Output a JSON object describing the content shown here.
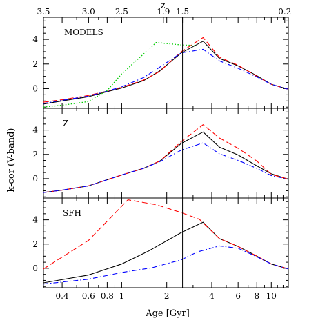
{
  "chart_data": {
    "type": "line",
    "xlabel": "Age [Gyr]",
    "ylabel": "k-cor (V-band)",
    "top_axis_label": "z",
    "x_scale": "log",
    "xlim": [
      0.3,
      13
    ],
    "x_ticks": [
      0.4,
      0.6,
      0.8,
      1,
      2,
      4,
      6,
      8,
      10
    ],
    "x_tick_labels": [
      "0.4",
      "0.6",
      "0.8",
      "1",
      "2",
      "4",
      "6",
      "8",
      "10"
    ],
    "top_ticks": [
      {
        "label": "3.5",
        "age": 0.3
      },
      {
        "label": "3.0",
        "age": 0.6
      },
      {
        "label": "2.5",
        "age": 1.0
      },
      {
        "label": "1.9",
        "age": 1.9
      },
      {
        "label": "1.5",
        "age": 2.55
      },
      {
        "label": "0.2",
        "age": 12.3
      }
    ],
    "vertical_line_age": 2.55,
    "panels": [
      {
        "label": "MODELS",
        "ylim": [
          -1.6,
          5.8
        ],
        "y_ticks": [
          0,
          2,
          4
        ],
        "series": [
          {
            "style": "solid",
            "color": "#000000",
            "x": [
              0.3,
              0.4,
              0.6,
              0.8,
              1.0,
              1.4,
              1.8,
              2.5,
              3.5,
              4.5,
              6.0,
              8.0,
              10.0,
              13.0
            ],
            "y": [
              -1.25,
              -1.0,
              -0.65,
              -0.25,
              0.05,
              0.65,
              1.45,
              2.9,
              3.85,
              2.45,
              1.85,
              1.05,
              0.35,
              -0.05
            ]
          },
          {
            "style": "dashed",
            "color": "#ff0000",
            "x": [
              0.3,
              0.4,
              0.6,
              0.8,
              1.0,
              1.4,
              1.8,
              2.5,
              3.5,
              4.5,
              6.0,
              8.0,
              10.0,
              13.0
            ],
            "y": [
              -1.1,
              -0.9,
              -0.55,
              -0.2,
              0.1,
              0.7,
              1.4,
              3.0,
              4.15,
              2.55,
              1.9,
              1.0,
              0.35,
              -0.05
            ]
          },
          {
            "style": "dashdot",
            "color": "#0000ff",
            "x": [
              0.3,
              0.4,
              0.6,
              0.8,
              1.0,
              1.4,
              1.8,
              2.5,
              3.5,
              4.5,
              6.0,
              8.0,
              10.0,
              13.0
            ],
            "y": [
              -1.2,
              -0.95,
              -0.6,
              -0.2,
              0.15,
              0.9,
              1.75,
              2.9,
              3.2,
              2.25,
              1.65,
              0.95,
              0.35,
              -0.05
            ]
          },
          {
            "style": "dotted",
            "color": "#00cc00",
            "x": [
              0.3,
              0.4,
              0.6,
              0.8,
              1.0,
              1.7,
              2.5,
              3.2
            ],
            "y": [
              -1.5,
              -1.35,
              -1.05,
              -0.15,
              1.2,
              3.75,
              3.55,
              3.5
            ]
          }
        ]
      },
      {
        "label": "Z",
        "ylim": [
          -1.6,
          5.8
        ],
        "y_ticks": [
          0,
          2,
          4
        ],
        "series": [
          {
            "style": "solid",
            "color": "#000000",
            "x": [
              0.3,
              0.4,
              0.6,
              1.0,
              1.4,
              1.8,
              2.5,
              3.5,
              4.5,
              6.0,
              8.0,
              10.0,
              13.0
            ],
            "y": [
              -1.15,
              -0.95,
              -0.6,
              0.3,
              0.85,
              1.45,
              2.9,
              3.85,
              2.6,
              1.95,
              1.05,
              0.4,
              -0.05
            ]
          },
          {
            "style": "dashed",
            "color": "#ff0000",
            "x": [
              0.3,
              0.4,
              0.6,
              1.0,
              1.4,
              1.8,
              2.5,
              3.5,
              4.5,
              6.0,
              8.0,
              10.0,
              13.0
            ],
            "y": [
              -1.15,
              -0.95,
              -0.6,
              0.3,
              0.85,
              1.45,
              3.05,
              4.45,
              3.35,
              2.5,
              1.45,
              0.35,
              -0.05
            ]
          },
          {
            "style": "dashdot",
            "color": "#0000ff",
            "x": [
              0.3,
              0.4,
              0.6,
              1.0,
              1.4,
              1.8,
              2.5,
              3.5,
              4.5,
              6.0,
              8.0,
              10.0,
              13.0
            ],
            "y": [
              -1.15,
              -0.95,
              -0.6,
              0.3,
              0.85,
              1.4,
              2.35,
              2.95,
              2.05,
              1.5,
              0.85,
              0.25,
              -0.05
            ]
          }
        ]
      },
      {
        "label": "SFH",
        "ylim": [
          -1.6,
          5.8
        ],
        "y_ticks": [
          0,
          2,
          4
        ],
        "series": [
          {
            "style": "solid",
            "color": "#000000",
            "x": [
              0.3,
              0.6,
              1.0,
              1.5,
              2.5,
              3.5,
              4.5,
              6.0,
              8.0,
              10.0,
              13.0
            ],
            "y": [
              -1.2,
              -0.55,
              0.35,
              1.4,
              2.95,
              3.8,
              2.45,
              1.8,
              1.0,
              0.35,
              -0.05
            ]
          },
          {
            "style": "dashed",
            "color": "#ff0000",
            "x": [
              0.3,
              0.6,
              1.1,
              1.7,
              2.5,
              3.3,
              4.5,
              6.0,
              8.0,
              10.0,
              13.0
            ],
            "y": [
              -0.05,
              2.3,
              5.65,
              5.25,
              4.6,
              4.05,
              2.45,
              1.8,
              1.0,
              0.35,
              -0.05
            ]
          },
          {
            "style": "dashdot",
            "color": "#0000ff",
            "x": [
              0.3,
              0.6,
              1.0,
              1.6,
              2.5,
              3.2,
              4.5,
              6.0,
              8.0,
              10.0,
              13.0
            ],
            "y": [
              -1.3,
              -0.9,
              -0.35,
              0.05,
              0.7,
              1.35,
              1.85,
              1.65,
              0.95,
              0.35,
              -0.05
            ]
          }
        ]
      }
    ]
  }
}
